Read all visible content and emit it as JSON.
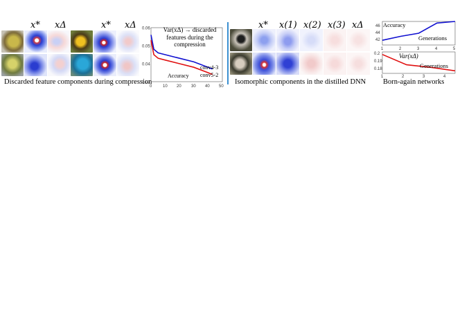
{
  "left_panel": {
    "headers": [
      "x*",
      "xΔ",
      "x*",
      "xΔ"
    ],
    "caption": "Discarded feature components during compression"
  },
  "chart_compression": {
    "annotation": "Var(xΔ) → discarded features during the compression",
    "caption_in_plot": "Accuracy",
    "series_labels": [
      "conv4-3",
      "conv5-2"
    ],
    "xticks": [
      "0",
      "10",
      "20",
      "30",
      "40",
      "50"
    ],
    "yticks": [
      "0.03",
      "0.04",
      "0.05",
      "0.06"
    ]
  },
  "middle_panel": {
    "headers": [
      "x*",
      "x(1)",
      "x(2)",
      "x(3)",
      "xΔ"
    ],
    "caption": "Isomorphic components in the distilled DNN"
  },
  "born_again": {
    "caption": "Born-again networks",
    "top_label_accuracy": "Accuracy",
    "top_label_generations": "Generations",
    "top_yticks": [
      "46",
      "44",
      "42"
    ],
    "top_xticks": [
      "1",
      "2",
      "3",
      "4",
      "5"
    ],
    "bottom_label_var": "Var(xΔ)",
    "bottom_label_generations": "Generations",
    "bottom_yticks": [
      "0.2",
      "0.19",
      "0.18"
    ],
    "bottom_xticks": [
      "1",
      "2",
      "3",
      "4"
    ]
  },
  "chart_data": [
    {
      "type": "line",
      "x": [
        0,
        2,
        5,
        10,
        20,
        30,
        40,
        43
      ],
      "series": [
        {
          "name": "conv4-3",
          "color": "#1010d0",
          "values": [
            0.056,
            0.048,
            0.046,
            0.045,
            0.043,
            0.041,
            0.038,
            0.037
          ]
        },
        {
          "name": "conv5-2",
          "color": "#e01010",
          "values": [
            0.053,
            0.045,
            0.043,
            0.042,
            0.04,
            0.038,
            0.035,
            0.034
          ]
        }
      ],
      "xlim": [
        0,
        50
      ],
      "ylim": [
        0.03,
        0.06
      ]
    },
    {
      "type": "line",
      "x": [
        1,
        2,
        3,
        4,
        5
      ],
      "series": [
        {
          "color": "#1010d0",
          "values": [
            43.2,
            44.2,
            45.0,
            47.6,
            48.0
          ]
        }
      ],
      "ylabel": "Accuracy",
      "xlabel": "Generations",
      "ylim": [
        42,
        48
      ]
    },
    {
      "type": "line",
      "x": [
        1,
        2,
        3,
        4
      ],
      "series": [
        {
          "color": "#e01010",
          "values": [
            0.197,
            0.185,
            0.182,
            0.178
          ]
        }
      ],
      "ylabel": "Var(xΔ)",
      "xlabel": "Generations",
      "ylim": [
        0.175,
        0.2
      ]
    }
  ]
}
